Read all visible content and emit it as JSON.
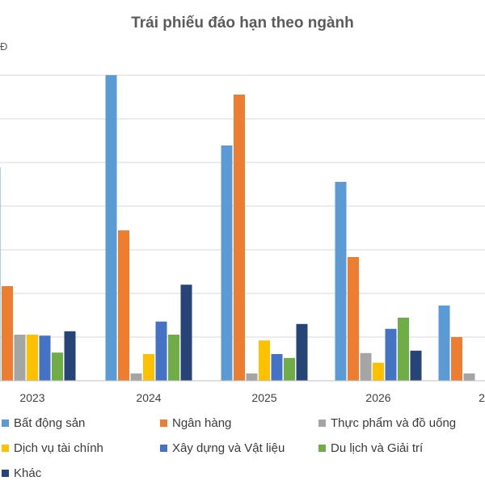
{
  "chart_data": {
    "type": "bar",
    "title": "Trái phiếu đáo hạn theo ngành",
    "y_unit_fragment": "Đ",
    "categories": [
      "2023",
      "2024",
      "2025",
      "2026",
      "2"
    ],
    "ylim": [
      0,
      63
    ],
    "grid": true,
    "legend_position": "bottom",
    "series": [
      {
        "name": "Bất động sản",
        "color": "#5b9bd5",
        "values": [
          44,
          63,
          48.5,
          41,
          15.5
        ]
      },
      {
        "name": "Ngân hàng",
        "color": "#ed7d31",
        "values": [
          19.5,
          31,
          59,
          25.5,
          9
        ]
      },
      {
        "name": "Thực phẩm và đồ uống",
        "color": "#a5a5a5",
        "values": [
          9.5,
          1.5,
          1.5,
          5.7,
          1.5
        ]
      },
      {
        "name": "Dịch vụ tài chính",
        "color": "#ffc000",
        "values": [
          9.5,
          5.5,
          8.3,
          3.7,
          null
        ]
      },
      {
        "name": "Xây dựng và Vật liệu",
        "color": "#4472c4",
        "values": [
          9.3,
          12.2,
          5.5,
          10.7,
          null
        ]
      },
      {
        "name": "Du lịch và Giải trí",
        "color": "#70ad47",
        "values": [
          5.8,
          9.5,
          4.7,
          13,
          null
        ]
      },
      {
        "name": "Khác",
        "color": "#264478",
        "values": [
          10.2,
          19.8,
          11.7,
          6.2,
          null
        ]
      }
    ]
  }
}
